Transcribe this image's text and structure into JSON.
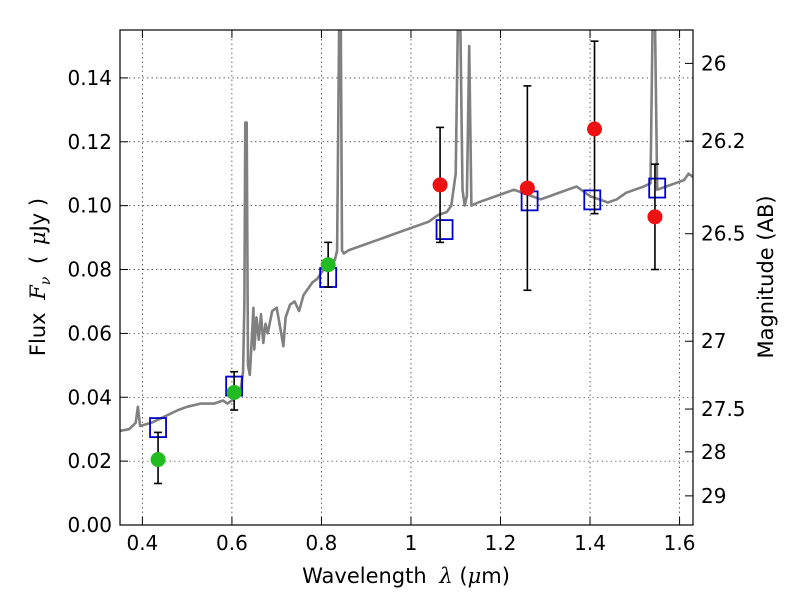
{
  "chart_data": {
    "type": "scatter",
    "xlabel": {
      "text": "Wavelength",
      "symbol": "λ",
      "unit_open": "(",
      "unit_mu": "μ",
      "unit_rest": "m)"
    },
    "ylabel": {
      "text": "Flux",
      "symbol": "F",
      "subscript": "ν",
      "unit_open": "(",
      "unit_mu": "μ",
      "unit_rest": "Jy )"
    },
    "ylabel_right": "Magnitude (AB)",
    "xlim": [
      0.35,
      1.63
    ],
    "ylim": [
      0.0,
      0.155
    ],
    "x_ticks": [
      0.4,
      0.6,
      0.8,
      1.0,
      1.2,
      1.4,
      1.6
    ],
    "x_tick_labels": [
      "0.4",
      "0.6",
      "0.8",
      "1",
      "1.2",
      "1.4",
      "1.6"
    ],
    "y_ticks": [
      0.0,
      0.02,
      0.04,
      0.06,
      0.08,
      0.1,
      0.12,
      0.14
    ],
    "y_tick_labels": [
      "0.00",
      "0.02",
      "0.04",
      "0.06",
      "0.08",
      "0.10",
      "0.12",
      "0.14"
    ],
    "mag_ticks": [
      26,
      26.2,
      26.5,
      27,
      27.5,
      28,
      29
    ],
    "mag_tick_labels": [
      "26",
      "26.2",
      "26.5",
      "27",
      "27.5",
      "28",
      "29"
    ],
    "grid": true,
    "colors": {
      "sed": "#808080",
      "model_box": "#0000cc",
      "detection": "#22bb22",
      "photometry": "#ee1111",
      "errorbar": "#000000"
    },
    "sed_points": [
      [
        0.35,
        0.0295
      ],
      [
        0.37,
        0.03
      ],
      [
        0.385,
        0.032
      ],
      [
        0.39,
        0.037
      ],
      [
        0.395,
        0.031
      ],
      [
        0.42,
        0.032
      ],
      [
        0.45,
        0.034
      ],
      [
        0.48,
        0.036
      ],
      [
        0.5,
        0.037
      ],
      [
        0.53,
        0.038
      ],
      [
        0.56,
        0.038
      ],
      [
        0.58,
        0.039
      ],
      [
        0.59,
        0.038
      ],
      [
        0.6,
        0.039
      ],
      [
        0.61,
        0.04
      ],
      [
        0.62,
        0.043
      ],
      [
        0.625,
        0.048
      ],
      [
        0.628,
        0.07
      ],
      [
        0.63,
        0.126
      ],
      [
        0.633,
        0.126
      ],
      [
        0.636,
        0.05
      ],
      [
        0.64,
        0.047
      ],
      [
        0.645,
        0.06
      ],
      [
        0.648,
        0.068
      ],
      [
        0.65,
        0.055
      ],
      [
        0.655,
        0.065
      ],
      [
        0.66,
        0.058
      ],
      [
        0.665,
        0.066
      ],
      [
        0.67,
        0.057
      ],
      [
        0.675,
        0.063
      ],
      [
        0.68,
        0.06
      ],
      [
        0.69,
        0.067
      ],
      [
        0.7,
        0.068
      ],
      [
        0.71,
        0.06
      ],
      [
        0.715,
        0.056
      ],
      [
        0.72,
        0.065
      ],
      [
        0.73,
        0.069
      ],
      [
        0.74,
        0.07
      ],
      [
        0.75,
        0.067
      ],
      [
        0.76,
        0.072
      ],
      [
        0.77,
        0.074
      ],
      [
        0.78,
        0.076
      ],
      [
        0.79,
        0.077
      ],
      [
        0.8,
        0.079
      ],
      [
        0.81,
        0.081
      ],
      [
        0.82,
        0.082
      ],
      [
        0.83,
        0.083
      ],
      [
        0.835,
        0.086
      ],
      [
        0.84,
        0.165
      ],
      [
        0.843,
        0.165
      ],
      [
        0.846,
        0.086
      ],
      [
        0.85,
        0.085
      ],
      [
        0.86,
        0.086
      ],
      [
        0.88,
        0.087
      ],
      [
        0.9,
        0.088
      ],
      [
        0.92,
        0.089
      ],
      [
        0.94,
        0.09
      ],
      [
        0.96,
        0.091
      ],
      [
        0.98,
        0.092
      ],
      [
        1.0,
        0.093
      ],
      [
        1.02,
        0.094
      ],
      [
        1.04,
        0.095
      ],
      [
        1.06,
        0.097
      ],
      [
        1.08,
        0.098
      ],
      [
        1.09,
        0.1
      ],
      [
        1.1,
        0.11
      ],
      [
        1.105,
        0.16
      ],
      [
        1.11,
        0.16
      ],
      [
        1.115,
        0.105
      ],
      [
        1.12,
        0.1
      ],
      [
        1.125,
        0.103
      ],
      [
        1.13,
        0.15
      ],
      [
        1.135,
        0.1
      ],
      [
        1.15,
        0.101
      ],
      [
        1.17,
        0.102
      ],
      [
        1.19,
        0.103
      ],
      [
        1.21,
        0.104
      ],
      [
        1.23,
        0.105
      ],
      [
        1.25,
        0.104
      ],
      [
        1.27,
        0.103
      ],
      [
        1.29,
        0.102
      ],
      [
        1.31,
        0.103
      ],
      [
        1.33,
        0.104
      ],
      [
        1.35,
        0.105
      ],
      [
        1.37,
        0.106
      ],
      [
        1.39,
        0.104
      ],
      [
        1.4,
        0.103
      ],
      [
        1.42,
        0.102
      ],
      [
        1.44,
        0.101
      ],
      [
        1.46,
        0.102
      ],
      [
        1.48,
        0.104
      ],
      [
        1.5,
        0.105
      ],
      [
        1.52,
        0.106
      ],
      [
        1.535,
        0.107
      ],
      [
        1.54,
        0.16
      ],
      [
        1.545,
        0.16
      ],
      [
        1.55,
        0.105
      ],
      [
        1.57,
        0.106
      ],
      [
        1.59,
        0.107
      ],
      [
        1.61,
        0.108
      ],
      [
        1.62,
        0.11
      ],
      [
        1.63,
        0.109
      ]
    ],
    "model_boxes": [
      {
        "x": 0.435,
        "y": 0.0305
      },
      {
        "x": 0.605,
        "y": 0.0435
      },
      {
        "x": 0.815,
        "y": 0.0775
      },
      {
        "x": 1.075,
        "y": 0.0925
      },
      {
        "x": 1.265,
        "y": 0.1015
      },
      {
        "x": 1.405,
        "y": 0.1018
      },
      {
        "x": 1.55,
        "y": 0.1055
      }
    ],
    "detections": [
      {
        "x": 0.435,
        "y": 0.0205,
        "ylo": 0.013,
        "yhi": 0.029
      },
      {
        "x": 0.605,
        "y": 0.0415,
        "ylo": 0.036,
        "yhi": 0.048
      },
      {
        "x": 0.815,
        "y": 0.0815,
        "ylo": 0.0745,
        "yhi": 0.0885
      }
    ],
    "photometry": [
      {
        "x": 1.065,
        "y": 0.1065,
        "ylo": 0.0885,
        "yhi": 0.1245
      },
      {
        "x": 1.26,
        "y": 0.1055,
        "ylo": 0.0735,
        "yhi": 0.1375
      },
      {
        "x": 1.41,
        "y": 0.124,
        "ylo": 0.0975,
        "yhi": 0.1515
      },
      {
        "x": 1.545,
        "y": 0.0965,
        "ylo": 0.08,
        "yhi": 0.113
      }
    ]
  }
}
